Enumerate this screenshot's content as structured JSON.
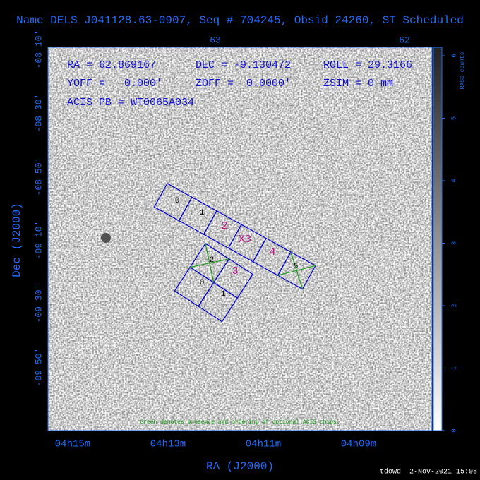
{
  "header": {
    "title": "Name DELS J041128.63-0907, Seq # 704245, Obsid 24260, ST Scheduled"
  },
  "info": [
    [
      "RA = 62.869167",
      "DEC = -9.130472",
      "ROLL = 29.3166"
    ],
    [
      "YOFF =   0.000'",
      "ZOFF =  0.0000'",
      "ZSIM = 0 mm"
    ],
    [
      "ACIS PB = WT0065A034"
    ]
  ],
  "axes": {
    "x_label": "RA (J2000)",
    "y_label": "Dec (J2000)",
    "x_ticks": [
      "04h15m",
      "04h13m",
      "04h11m",
      "04h09m"
    ],
    "top_ticks": [
      "63",
      "62"
    ],
    "y_ticks": [
      "-08 10'",
      "-08 30'",
      "-08 50'",
      "-09 10'",
      "-09 30'",
      "-09 50'"
    ]
  },
  "colorbar": {
    "label": "RASS counts",
    "ticks": [
      0,
      1,
      2,
      3,
      4,
      5,
      6
    ]
  },
  "chips": {
    "acis_s": [
      "0",
      "1",
      "2",
      "X3",
      "4",
      "5"
    ],
    "acis_i": [
      "2",
      "3",
      "0",
      "1"
    ]
  },
  "note": "Green denotes presence and ordering of optional ACIS chips.",
  "footer": "tdowd  2-Nov-2021 15:08"
}
